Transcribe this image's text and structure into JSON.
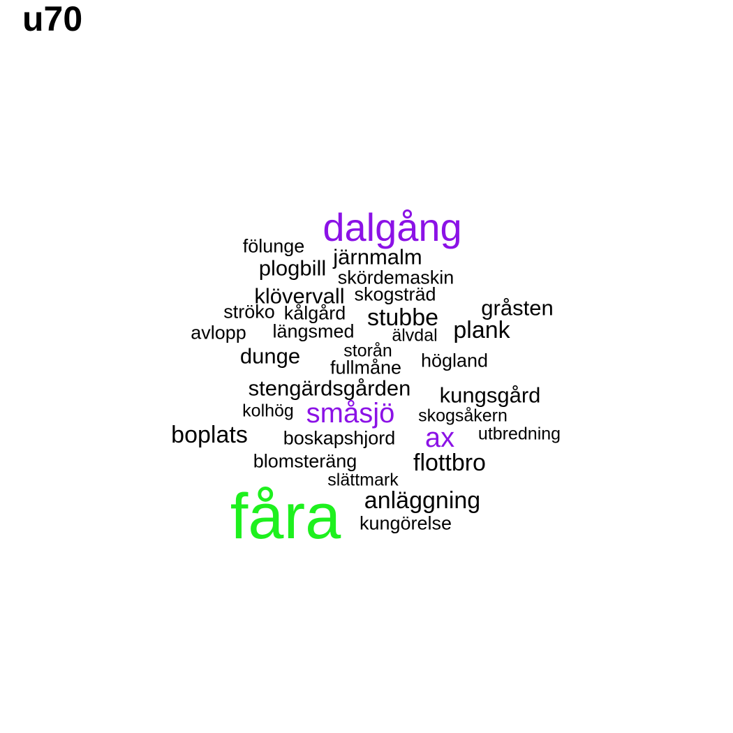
{
  "title": "u70",
  "colors": {
    "black": "#000000",
    "purple": "#8b12e6",
    "green": "#1ef01e"
  },
  "words": {
    "dalgang": "dalgång",
    "folunge": "fölunge",
    "jarnmalm": "järnmalm",
    "plogbill": "plogbill",
    "skordemaskin": "skördemaskin",
    "klovervall": "klövervall",
    "skogstrad": "skogsträd",
    "grasten": "gråsten",
    "stroko": "ströko",
    "kalgard": "kålgård",
    "stubbe": "stubbe",
    "plank": "plank",
    "avlopp": "avlopp",
    "langsmed": "längsmed",
    "alvdal": "älvdal",
    "dunge": "dunge",
    "storan": "storån",
    "hogland": "högland",
    "fullmane": "fullmåne",
    "stengardsgarden": "stengärdsgården",
    "kungsgard": "kungsgård",
    "kolhog": "kolhög",
    "smasjo": "småsjö",
    "skogsakern": "skogsåkern",
    "boplats": "boplats",
    "boskapshjord": "boskapshjord",
    "ax": "ax",
    "utbredning": "utbredning",
    "blomsterang": "blomsteräng",
    "flottbro": "flottbro",
    "slattmark": "slättmark",
    "fara": "fåra",
    "anlaggning": "anläggning",
    "kungorelse": "kungörelse"
  }
}
